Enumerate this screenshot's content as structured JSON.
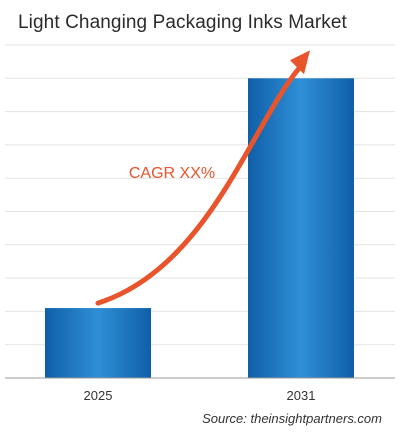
{
  "chart_data": {
    "type": "bar",
    "title": "Light Changing Packaging Inks Market",
    "categories": [
      "2025",
      "2031"
    ],
    "values": [
      21,
      90
    ],
    "ylim": [
      0,
      100
    ],
    "grid": true,
    "annotation": "CAGR XX%",
    "xlabel": "",
    "ylabel": ""
  },
  "source": "Source: theinsightpartners.com",
  "colors": {
    "bar_top": "#2f8fd6",
    "bar_bottom": "#0f5fa8",
    "arrow": "#e8542b",
    "grid": "#e3e3e3",
    "annotation": "#e8542b"
  }
}
